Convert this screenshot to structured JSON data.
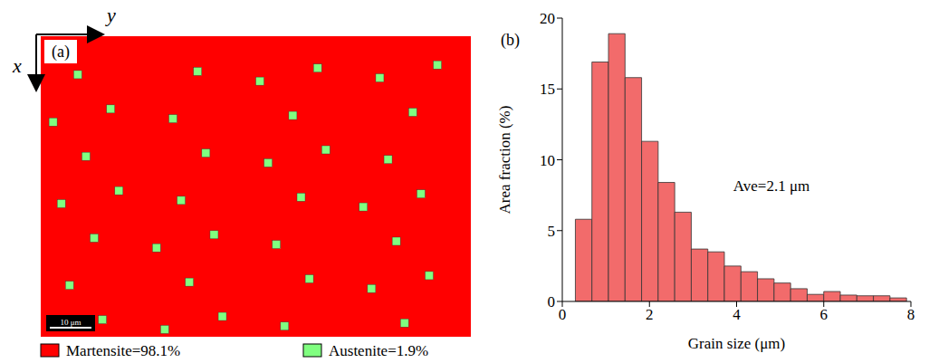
{
  "chart_data": [
    {
      "type": "phase_map",
      "panel": "(a)",
      "axis_labels": {
        "x": "x",
        "y": "y"
      },
      "scale_bar": "10 μm",
      "legend": "bottom",
      "series": [
        {
          "name": "Martensite",
          "label": "Martensite=98.1%",
          "value": 98.1,
          "color": "#ff0000"
        },
        {
          "name": "Austenite",
          "label": "Austenite=1.9%",
          "value": 1.9,
          "color": "#80ff80"
        }
      ]
    },
    {
      "type": "histogram",
      "panel": "(b)",
      "x_label": "Grain size (μm)",
      "y_label": "Area fraction (%)",
      "annotation": "Ave=2.1 μm",
      "bins": [
        0.3,
        0.68,
        1.06,
        1.44,
        1.82,
        2.2,
        2.58,
        2.96,
        3.34,
        3.72,
        4.1,
        4.48,
        4.86,
        5.24,
        5.62,
        6.0,
        6.38,
        6.76,
        7.14,
        7.52,
        7.9
      ],
      "values": [
        5.8,
        16.9,
        18.9,
        15.8,
        11.3,
        8.4,
        6.3,
        3.7,
        3.5,
        2.5,
        2.1,
        1.6,
        1.3,
        0.9,
        0.5,
        0.7,
        0.45,
        0.4,
        0.4,
        0.25
      ],
      "color": "#f26b6b",
      "xlim": [
        0,
        8
      ],
      "xticks": [
        0,
        2,
        4,
        6,
        8
      ],
      "ylim": [
        0,
        20
      ],
      "yticks": [
        0,
        5,
        10,
        15,
        20
      ],
      "grid": false
    }
  ]
}
